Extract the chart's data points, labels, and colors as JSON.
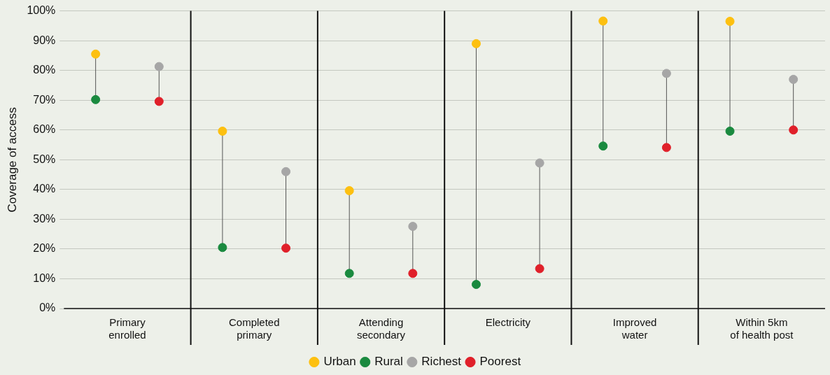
{
  "chart_data": {
    "type": "scatter",
    "ylabel": "Coverage of access",
    "categories": [
      "Primary\nenrolled",
      "Completed\nprimary",
      "Attending\nsecondary",
      "Electricity",
      "Improved\nwater",
      "Within 5km\nof health post"
    ],
    "series": [
      {
        "name": "Urban",
        "color": "#fdc010",
        "values": [
          85.5,
          59.6,
          39.6,
          89,
          96.6,
          96.5
        ]
      },
      {
        "name": "Rural",
        "color": "#1a8a3f",
        "values": [
          70.2,
          20.5,
          11.8,
          8.1,
          54.6,
          59.6
        ]
      },
      {
        "name": "Richest",
        "color": "#a6a6a6",
        "values": [
          81.3,
          46,
          27.6,
          48.9,
          79,
          77
        ]
      },
      {
        "name": "Poorest",
        "color": "#e0202a",
        "values": [
          69.6,
          20.3,
          11.8,
          13.4,
          54.1,
          60
        ]
      }
    ],
    "ylim": [
      0,
      100
    ],
    "yticks": [
      {
        "value": 0,
        "label": "0%"
      },
      {
        "value": 10,
        "label": "10%"
      },
      {
        "value": 20,
        "label": "20%"
      },
      {
        "value": 30,
        "label": "30%"
      },
      {
        "value": 40,
        "label": "40%"
      },
      {
        "value": 50,
        "label": "50%"
      },
      {
        "value": 60,
        "label": "60%"
      },
      {
        "value": 70,
        "label": "70%"
      },
      {
        "value": 80,
        "label": "80%"
      },
      {
        "value": 90,
        "label": "90%"
      },
      {
        "value": 100,
        "label": "100%"
      }
    ],
    "grid": "y",
    "legend": "bottom",
    "marker": "circle"
  }
}
